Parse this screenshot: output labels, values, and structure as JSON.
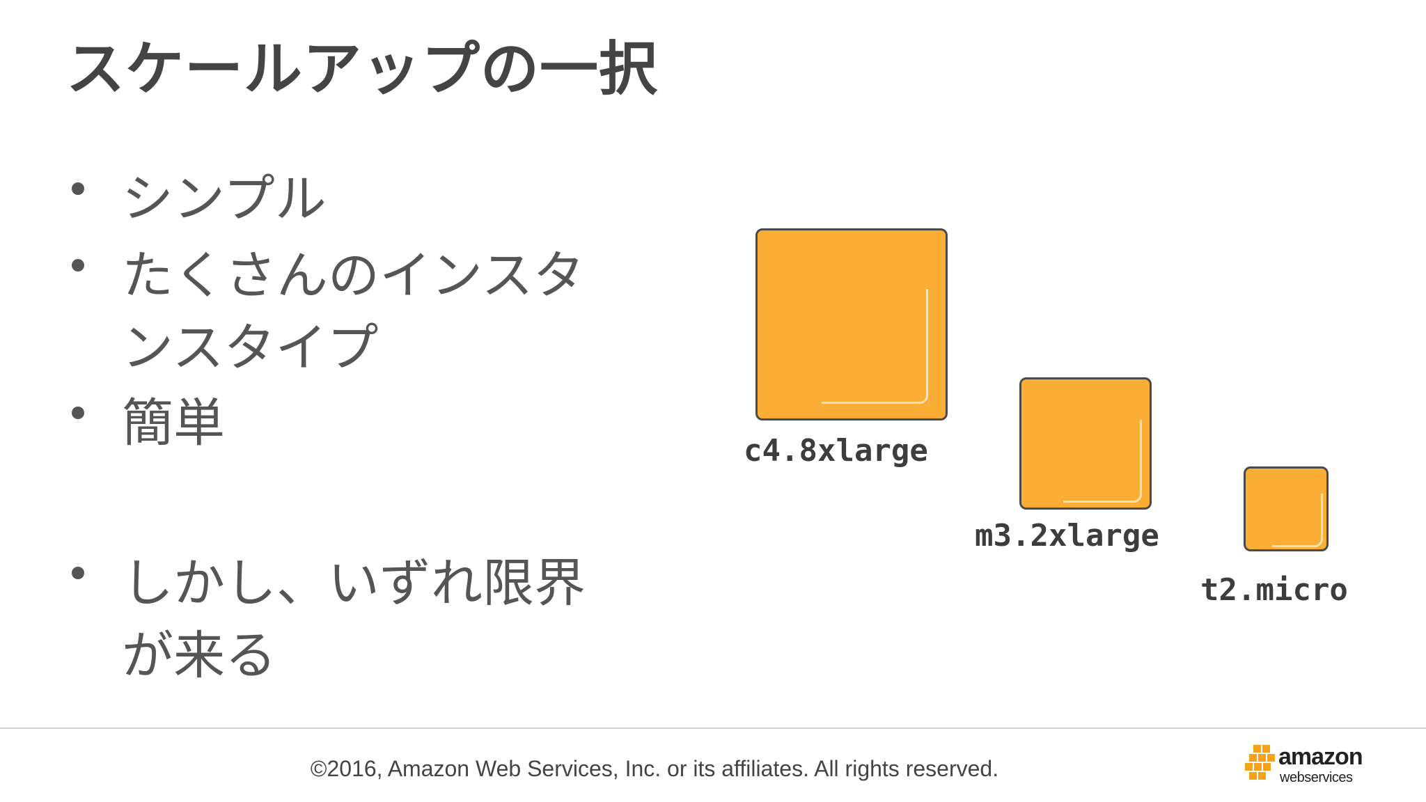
{
  "slide": {
    "title": "スケールアップの一択",
    "bullets": [
      "シンプル",
      "たくさんのインスタンスタイプ",
      "簡単",
      "しかし、いずれ限界が来る"
    ],
    "instances": [
      {
        "label": "c4.8xlarge"
      },
      {
        "label": "m3.2xlarge"
      },
      {
        "label": "t2.micro"
      }
    ],
    "colors": {
      "box_fill": "#fbae36",
      "box_border": "#4a4a4a",
      "text": "#555555"
    }
  },
  "footer": {
    "copyright": "©2016, Amazon Web Services, Inc. or its affiliates. All rights reserved.",
    "logo": {
      "word": "amazon",
      "sub": "webservices",
      "icon": "aws-cubes-icon"
    }
  }
}
